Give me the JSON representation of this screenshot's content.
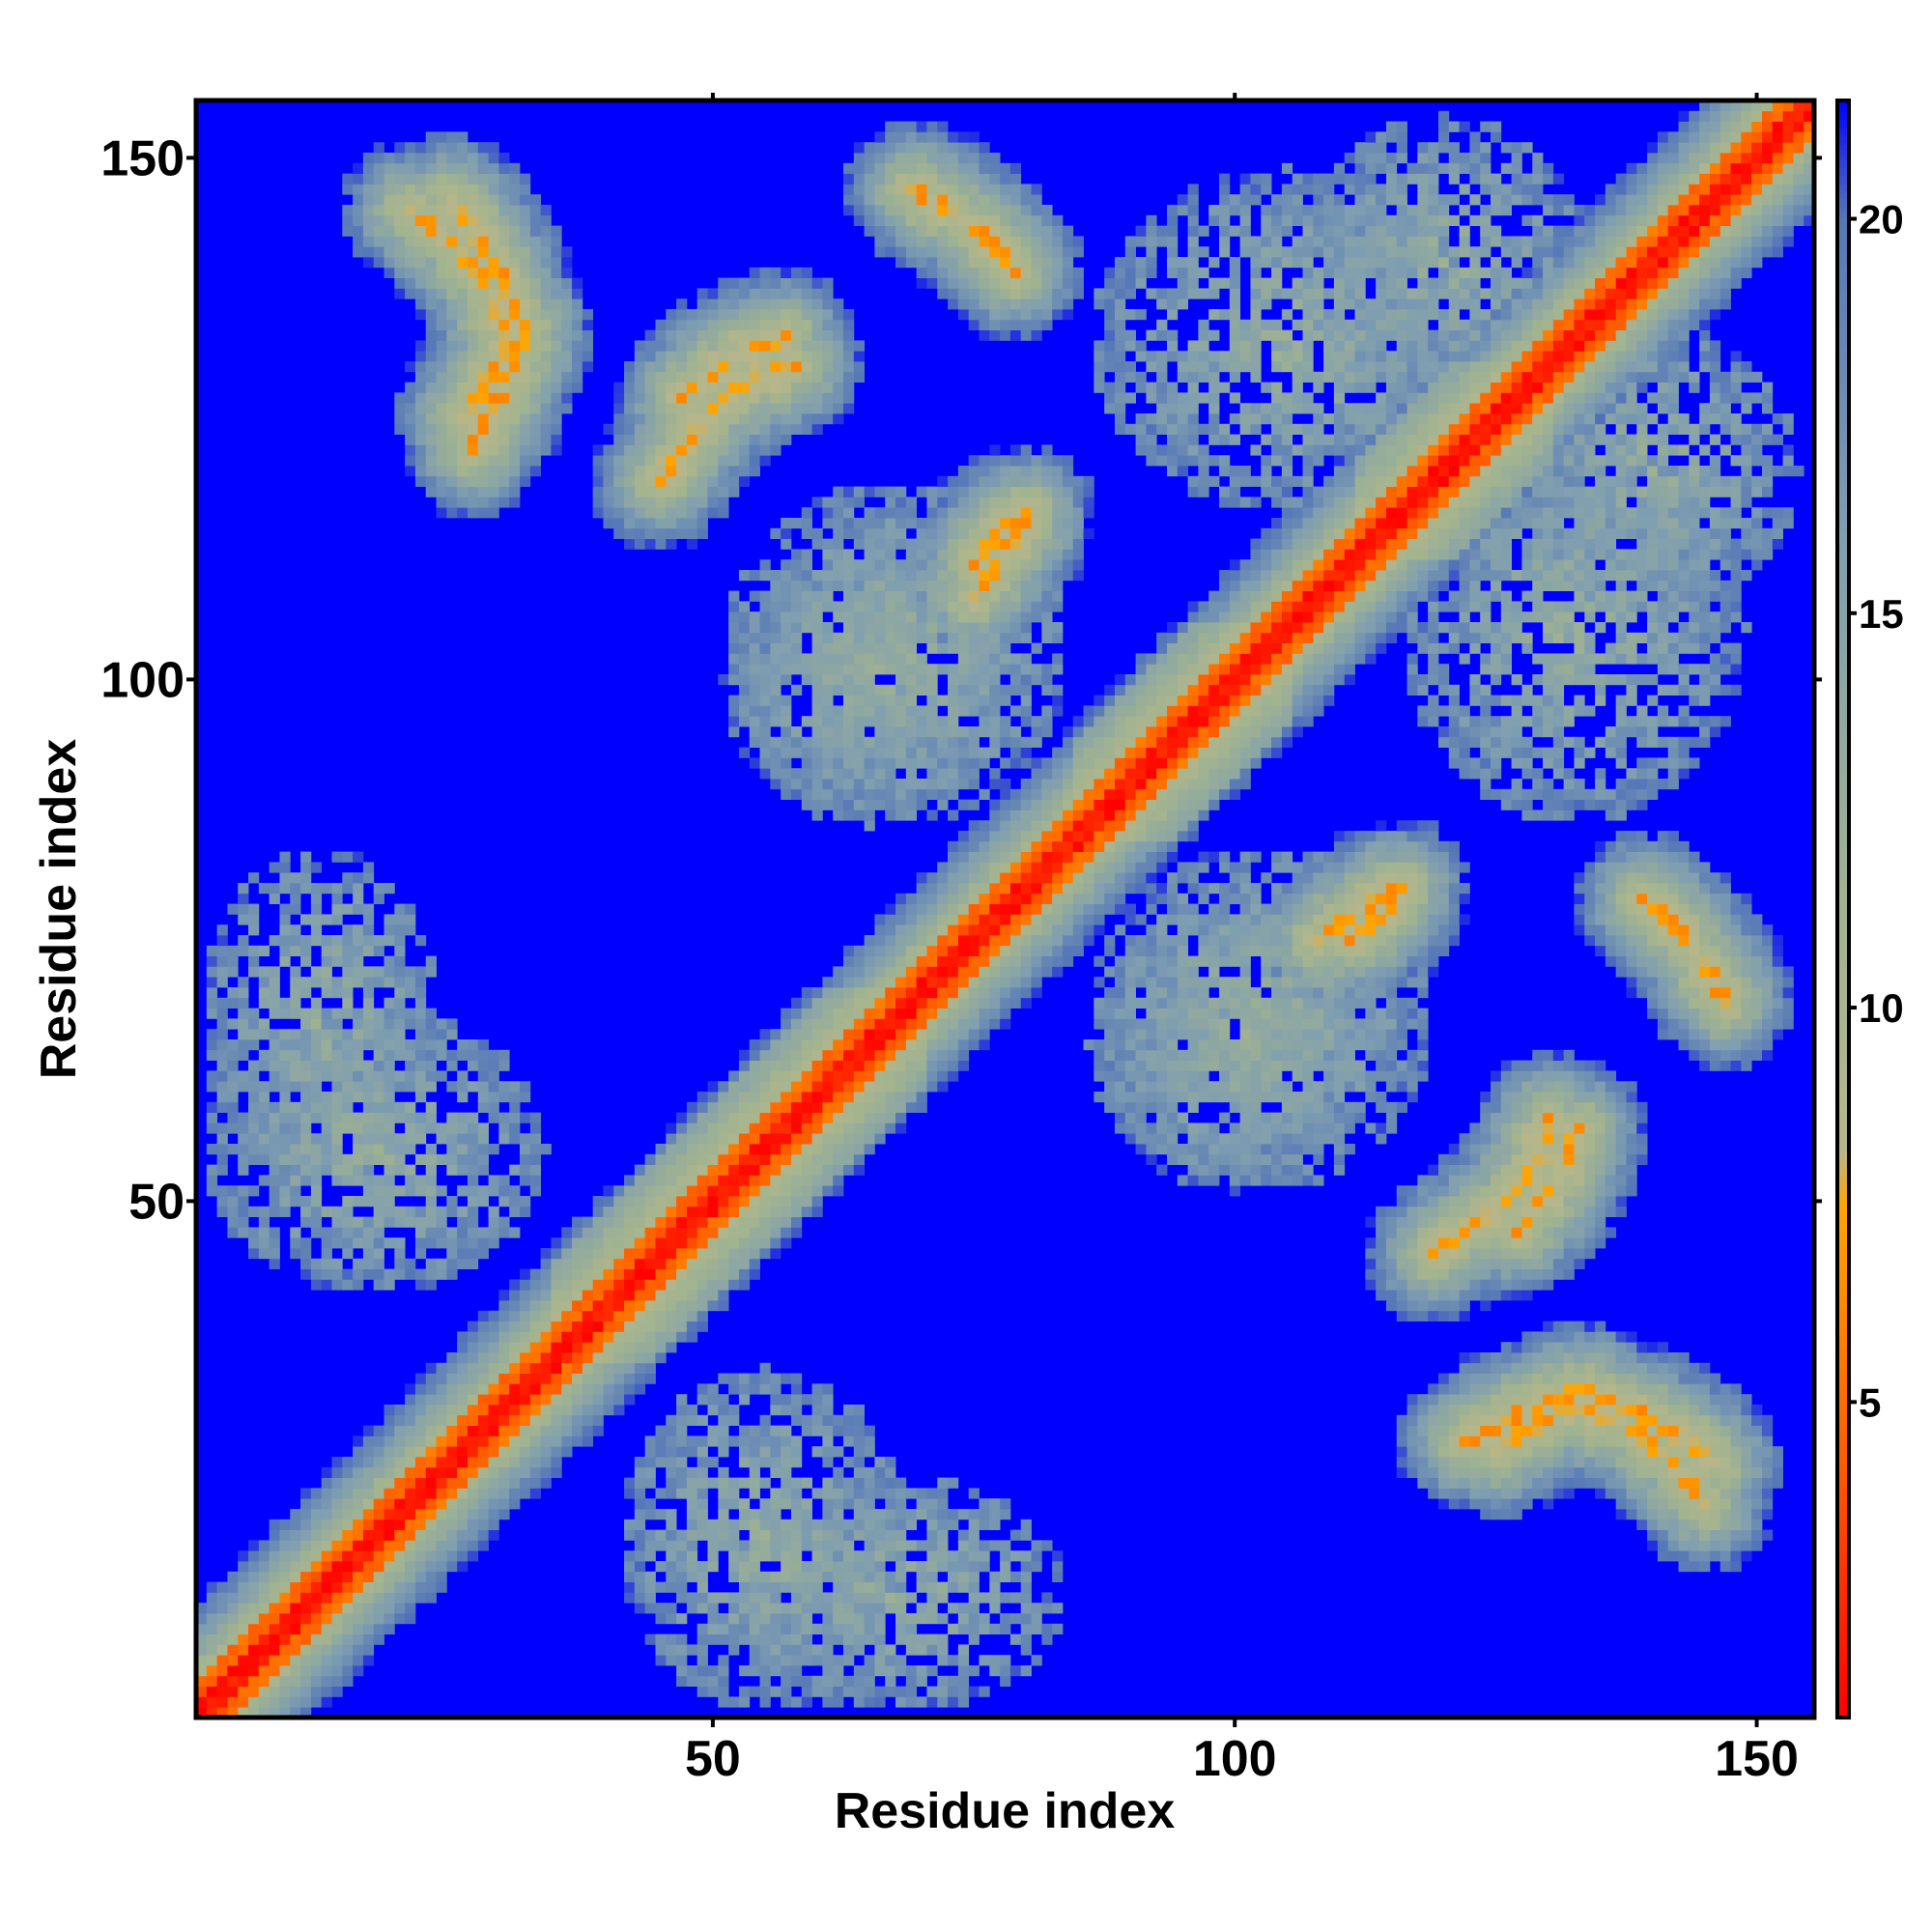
{
  "chart_data": {
    "type": "heatmap",
    "title": "",
    "xlabel": "Residue index",
    "ylabel": "Residue index",
    "n_residues": 155,
    "xlim": [
      1,
      155
    ],
    "ylim": [
      1,
      155
    ],
    "x_ticks": [
      50,
      100,
      150
    ],
    "y_ticks": [
      50,
      100,
      150
    ],
    "colorbar": {
      "range": [
        1,
        21.5
      ],
      "ticks": [
        5,
        10,
        15,
        20
      ],
      "stops": [
        {
          "value": 1,
          "color": "#ff0000"
        },
        {
          "value": 4,
          "color": "#ff5500"
        },
        {
          "value": 7.5,
          "color": "#ffa500"
        },
        {
          "value": 8.2,
          "color": "#b7b68a"
        },
        {
          "value": 11,
          "color": "#a3b48f"
        },
        {
          "value": 16,
          "color": "#7f9eb0"
        },
        {
          "value": 20,
          "color": "#5677b8"
        },
        {
          "value": 21.5,
          "color": "#0000ff"
        }
      ]
    },
    "background_color": "#0000ff",
    "features": [
      {
        "description": "main diagonal",
        "i": [
          1,
          155
        ],
        "j": [
          1,
          155
        ],
        "value": 1.5
      },
      {
        "description": "helix band 35-70",
        "i": [
          35,
          70
        ],
        "j": [
          35,
          70
        ],
        "value": 5.5
      },
      {
        "description": "helix band 85-105",
        "i": [
          85,
          105
        ],
        "j": [
          85,
          105
        ],
        "value": 5.5
      },
      {
        "description": "helix band 112-130",
        "i": [
          112,
          130
        ],
        "j": [
          112,
          130
        ],
        "value": 5.5
      },
      {
        "description": "contact arc",
        "points": [
          [
            25,
            146
          ],
          [
            29,
            140
          ],
          [
            32,
            133
          ],
          [
            29,
            126
          ],
          [
            27,
            122
          ]
        ],
        "value": 6
      },
      {
        "description": "contact arc",
        "points": [
          [
            45,
            119
          ],
          [
            50,
            126
          ],
          [
            54,
            129
          ],
          [
            58,
            130
          ]
        ],
        "value": 6
      },
      {
        "description": "contact arc",
        "points": [
          [
            76,
            143
          ],
          [
            79,
            139
          ]
        ],
        "value": 6
      },
      {
        "description": "contact arc",
        "points": [
          [
            75,
            108
          ],
          [
            78,
            112
          ],
          [
            80,
            116
          ]
        ],
        "value": 6
      },
      {
        "description": "contact arc",
        "points": [
          [
            111,
            75
          ],
          [
            115,
            78
          ]
        ],
        "value": 6
      },
      {
        "description": "contact arc",
        "points": [
          [
            140,
            78
          ],
          [
            145,
            73
          ],
          [
            147,
            69
          ]
        ],
        "value": 6
      },
      {
        "description": "contact arc",
        "points": [
          [
            127,
            47
          ],
          [
            131,
            52
          ],
          [
            133,
            57
          ]
        ],
        "value": 6
      },
      {
        "description": "contact arc",
        "points": [
          [
            125,
            26
          ],
          [
            131,
            30
          ],
          [
            137,
            29
          ],
          [
            142,
            25
          ],
          [
            145,
            21
          ]
        ],
        "value": 6
      },
      {
        "description": "scattered contacts",
        "i": [
          5,
          30
        ],
        "j": [
          45,
          65
        ],
        "value": 11
      },
      {
        "description": "scattered contacts",
        "i": [
          55,
          80
        ],
        "j": [
          5,
          20
        ],
        "value": 11
      },
      {
        "description": "scattered contacts",
        "i": [
          55,
          80
        ],
        "j": [
          90,
          115
        ],
        "value": 11
      },
      {
        "description": "scattered contacts",
        "i": [
          90,
          110
        ],
        "j": [
          55,
          75
        ],
        "value": 11
      },
      {
        "description": "scattered contacts",
        "i": [
          120,
          145
        ],
        "j": [
          90,
          120
        ],
        "value": 11
      },
      {
        "description": "scattered contacts",
        "i": [
          110,
          130
        ],
        "j": [
          130,
          150
        ],
        "value": 11
      }
    ]
  }
}
